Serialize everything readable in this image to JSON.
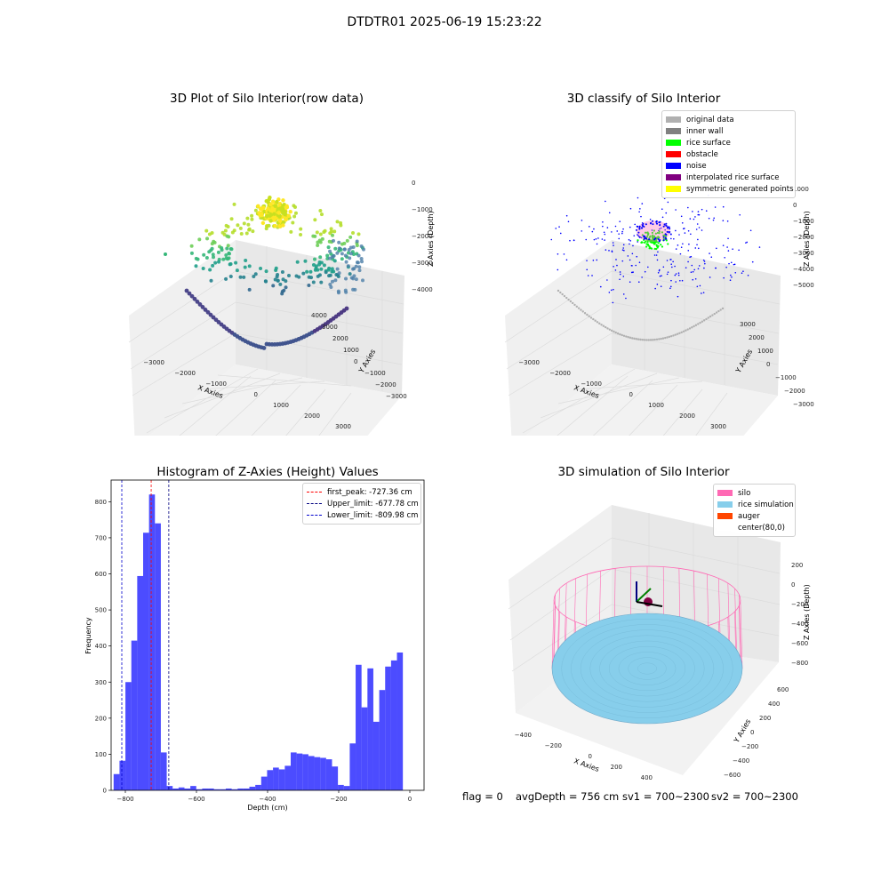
{
  "suptitle": "DTDTR01 2025-06-19 15:23:22",
  "footer": {
    "flag": "flag = 0",
    "avg_depth": "avgDepth = 756 cm",
    "sv1": "sv1 = 700~2300",
    "sv2": "sv2 = 700~2300"
  },
  "panel_raw": {
    "title": "3D Plot of Silo Interior(row data)",
    "xlabel": "X Axies",
    "ylabel": "Y Axies",
    "zlabel": "Z Axies (Depth)",
    "xticks": [
      "−3000",
      "−2000",
      "−1000",
      "0",
      "1000",
      "2000",
      "3000"
    ],
    "yticks": [
      "4000",
      "3000",
      "2000",
      "1000",
      "0",
      "−1000",
      "−2000",
      "−3000"
    ],
    "zticks": [
      "0",
      "−1000",
      "−2000",
      "−3000",
      "−4000"
    ]
  },
  "panel_class": {
    "title": "3D classify of Silo Interior",
    "xlabel": "X Axies",
    "ylabel": "Y Axies",
    "zlabel": "Z Axies (Depth)",
    "xticks": [
      "−3000",
      "−2000",
      "−1000",
      "0",
      "1000",
      "2000",
      "3000"
    ],
    "yticks": [
      "3000",
      "2000",
      "1000",
      "0",
      "−1000",
      "−2000",
      "−3000"
    ],
    "zticks": [
      "1000",
      "0",
      "−1000",
      "−2000",
      "−3000",
      "−4000",
      "−5000"
    ],
    "legend": [
      {
        "label": "original data",
        "color": "#b0b0b0"
      },
      {
        "label": "inner wall",
        "color": "#808080"
      },
      {
        "label": "rice surface",
        "color": "#00ff00"
      },
      {
        "label": "obstacle",
        "color": "#ff0000"
      },
      {
        "label": "noise",
        "color": "#0000ff"
      },
      {
        "label": "interpolated rice surface",
        "color": "#800080"
      },
      {
        "label": "symmetric generated points",
        "color": "#ffff00"
      }
    ]
  },
  "panel_sim": {
    "title": "3D simulation of Silo Interior",
    "xlabel": "X Axies",
    "ylabel": "Y Axies",
    "zlabel": "Z Axies (Depth)",
    "xticks": [
      "−400",
      "−200",
      "0",
      "200",
      "400",
      "600"
    ],
    "yticks": [
      "600",
      "400",
      "200",
      "0",
      "−200",
      "−400",
      "−600"
    ],
    "zticks": [
      "200",
      "0",
      "−200",
      "−400",
      "−600",
      "−800"
    ],
    "legend": [
      {
        "label": "silo",
        "color": "#ff69b4"
      },
      {
        "label": "rice simulation",
        "color": "#87ceeb"
      },
      {
        "label": "auger",
        "color": "#ff4500"
      },
      {
        "label": "center(80,0)",
        "color": "#ffffff"
      }
    ]
  },
  "chart_data": {
    "type": "bar",
    "title": "Histogram of Z-Axies (Height) Values",
    "xlabel": "Depth (cm)",
    "ylabel": "Frequency",
    "xlim": [
      -840,
      40
    ],
    "ylim": [
      0,
      860
    ],
    "xticks": [
      -800,
      -600,
      -400,
      -200,
      0
    ],
    "yticks": [
      0,
      100,
      200,
      300,
      400,
      500,
      600,
      700,
      800
    ],
    "bin_start": -833,
    "bin_width": 16.6,
    "values": [
      45,
      82,
      300,
      415,
      594,
      714,
      820,
      740,
      105,
      12,
      5,
      8,
      5,
      12,
      3,
      5,
      5,
      3,
      3,
      5,
      3,
      5,
      5,
      10,
      15,
      38,
      56,
      63,
      58,
      68,
      105,
      102,
      100,
      95,
      92,
      90,
      86,
      66,
      15,
      12,
      130,
      348,
      230,
      338,
      190,
      278,
      343,
      360,
      382
    ],
    "bar_color": "#0000ff",
    "vlines": [
      {
        "label": "first_peak: -727.36 cm",
        "x": -727.36,
        "color": "#ff0000"
      },
      {
        "label": "Upper_limit: -677.78 cm",
        "x": -677.78,
        "color": "#000080"
      },
      {
        "label": "Lower_limit: -809.98 cm",
        "x": -809.98,
        "color": "#0000cd"
      }
    ],
    "legend_position": "top-right"
  }
}
